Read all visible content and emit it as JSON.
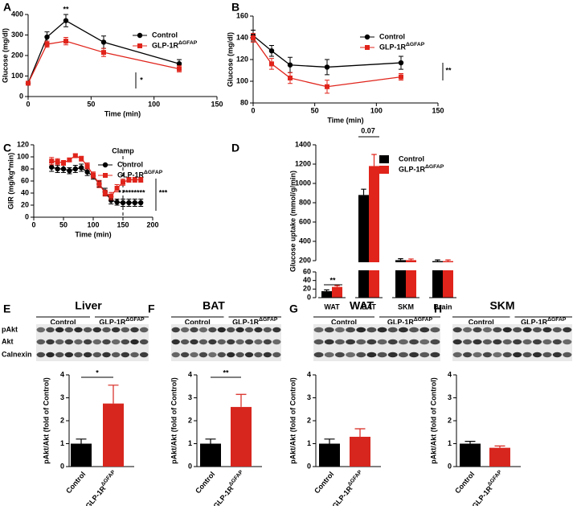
{
  "chart_data": [
    {
      "type": "line",
      "panel": "A",
      "xlabel": "Time (min)",
      "ylabel": "Glucose (mg/dl)",
      "x": [
        0,
        15,
        30,
        60,
        120
      ],
      "xlim": [
        0,
        150
      ],
      "xticks": [
        0,
        50,
        100,
        150
      ],
      "ylim": [
        0,
        400
      ],
      "yticks": [
        0,
        100,
        200,
        300,
        400
      ],
      "series": [
        {
          "name": "Control",
          "color": "#000000",
          "marker": "circle",
          "values": [
            65,
            290,
            370,
            265,
            160
          ],
          "errors": [
            8,
            25,
            30,
            30,
            20
          ]
        },
        {
          "name": "GLP-1RΔGFAP",
          "color": "#e0241b",
          "marker": "square",
          "values": [
            65,
            255,
            270,
            215,
            135
          ],
          "errors": [
            8,
            15,
            18,
            20,
            15
          ]
        }
      ],
      "annotations": [
        "**",
        "*"
      ]
    },
    {
      "type": "line",
      "panel": "B",
      "xlabel": "Time (min)",
      "ylabel": "Glucose (mg/dl)",
      "x": [
        0,
        15,
        30,
        60,
        120
      ],
      "xlim": [
        0,
        150
      ],
      "xticks": [
        0,
        50,
        100,
        150
      ],
      "ylim": [
        80,
        160
      ],
      "yticks": [
        80,
        100,
        120,
        140,
        160
      ],
      "series": [
        {
          "name": "Control",
          "color": "#000000",
          "marker": "circle",
          "values": [
            142,
            128,
            115,
            113,
            117
          ],
          "errors": [
            5,
            5,
            7,
            7,
            6
          ]
        },
        {
          "name": "GLP-1RΔGFAP",
          "color": "#e0241b",
          "marker": "square",
          "values": [
            140,
            116,
            103,
            95,
            104
          ],
          "errors": [
            4,
            5,
            5,
            6,
            3
          ]
        }
      ],
      "annotations": [
        "**"
      ]
    },
    {
      "type": "line",
      "panel": "C",
      "xlabel": "Time (min)",
      "ylabel": "GIR (mg/kg*min)",
      "clamp_label": "Clamp",
      "x": [
        30,
        40,
        50,
        60,
        70,
        80,
        90,
        100,
        110,
        120,
        130,
        140,
        150,
        160,
        170,
        180
      ],
      "xlim": [
        0,
        200
      ],
      "xticks": [
        0,
        50,
        100,
        150,
        200
      ],
      "ylim": [
        0,
        120
      ],
      "yticks": [
        0,
        20,
        40,
        60,
        80,
        100,
        120
      ],
      "series": [
        {
          "name": "Control",
          "color": "#000000",
          "marker": "circle",
          "values": [
            83,
            80,
            80,
            77,
            80,
            82,
            75,
            68,
            55,
            42,
            28,
            25,
            24,
            24,
            24,
            24
          ],
          "errors": [
            7,
            6,
            6,
            5,
            6,
            6,
            6,
            5,
            5,
            6,
            6,
            5,
            6,
            6,
            6,
            6
          ]
        },
        {
          "name": "GLP-1RΔGFAP",
          "color": "#e0241b",
          "marker": "square",
          "values": [
            93,
            92,
            90,
            95,
            102,
            97,
            85,
            70,
            55,
            40,
            35,
            48,
            58,
            62,
            62,
            62
          ],
          "errors": [
            6,
            5,
            4,
            3,
            3,
            4,
            5,
            5,
            6,
            5,
            6,
            6,
            5,
            4,
            4,
            4
          ]
        }
      ],
      "annotations": [
        "*",
        "**",
        "**",
        "**",
        "**",
        "***"
      ]
    },
    {
      "type": "bar",
      "panel": "D",
      "ylabel": "Glucose uptake (mmol/g/min)",
      "categories": [
        "WAT",
        "BAT",
        "SKM",
        "Brain"
      ],
      "ylim": [
        0,
        1400
      ],
      "ybreak": [
        60,
        200
      ],
      "yticks": [
        0,
        20,
        40,
        60,
        200,
        400,
        600,
        800,
        1000,
        1200,
        1400
      ],
      "series": [
        {
          "name": "Control",
          "color": "#000000",
          "values": [
            15,
            880,
            205,
            195
          ],
          "errors": [
            3,
            60,
            15,
            12
          ]
        },
        {
          "name": "GLP-1RΔGFAP",
          "color": "#e0241b",
          "values": [
            25,
            1180,
            205,
            195
          ],
          "errors": [
            3,
            120,
            12,
            12
          ]
        }
      ],
      "annotations": [
        "**",
        "0.07"
      ]
    },
    {
      "type": "bar",
      "panel": "E",
      "title": "Liver",
      "ylabel": "pAkt/Akt (fold of Control)",
      "blot": {
        "rows": [
          "pAkt",
          "Akt",
          "Calnexin"
        ],
        "groups": [
          "Control",
          "GLP-1RΔGFAP"
        ]
      },
      "categories": [
        "Control",
        "GLP-1RΔGFAP"
      ],
      "colors": [
        "#000000",
        "#d7261e"
      ],
      "values": [
        1,
        2.75
      ],
      "errors": [
        0.2,
        0.8
      ],
      "ylim": [
        0,
        4
      ],
      "yticks": [
        0,
        1,
        2,
        3,
        4
      ],
      "annotations": [
        "*"
      ]
    },
    {
      "type": "bar",
      "panel": "F",
      "title": "BAT",
      "ylabel": "pAkt/Akt (fold of Control)",
      "blot": {
        "groups": [
          "Control",
          "GLP-1RΔGFAP"
        ]
      },
      "categories": [
        "Control",
        "GLP-1RΔGFAP"
      ],
      "colors": [
        "#000000",
        "#d7261e"
      ],
      "values": [
        1,
        2.6
      ],
      "errors": [
        0.2,
        0.55
      ],
      "ylim": [
        0,
        4
      ],
      "yticks": [
        0,
        1,
        2,
        3,
        4
      ],
      "annotations": [
        "**"
      ]
    },
    {
      "type": "bar",
      "panel": "G",
      "title": "WAT",
      "ylabel": "pAkt/Akt (fold of Control)",
      "blot": {
        "groups": [
          "Control",
          "GLP-1RΔGFAP"
        ]
      },
      "categories": [
        "Control",
        "GLP-1RΔGFAP"
      ],
      "colors": [
        "#000000",
        "#d7261e"
      ],
      "values": [
        1,
        1.3
      ],
      "errors": [
        0.2,
        0.35
      ],
      "ylim": [
        0,
        4
      ],
      "yticks": [
        0,
        1,
        2,
        3,
        4
      ]
    },
    {
      "type": "bar",
      "panel": "H",
      "title": "SKM",
      "ylabel": "pAkt/Akt (fold of Control)",
      "blot": {
        "groups": [
          "Control",
          "GLP-1RΔGFAP"
        ]
      },
      "categories": [
        "Control",
        "GLP-1RΔGFAP"
      ],
      "colors": [
        "#000000",
        "#d7261e"
      ],
      "values": [
        1,
        0.82
      ],
      "errors": [
        0.1,
        0.08
      ],
      "ylim": [
        0,
        4
      ],
      "yticks": [
        0,
        1,
        2,
        3,
        4
      ]
    }
  ]
}
